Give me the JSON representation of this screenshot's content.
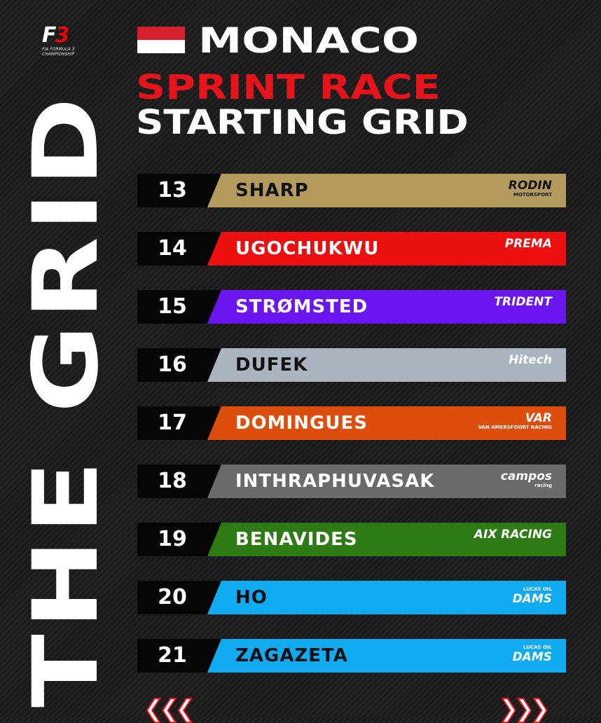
{
  "logo": {
    "mark_f": "F",
    "mark_3": "3",
    "subtitle": "FIA FORMULA 3 CHAMPIONSHIP"
  },
  "header": {
    "location": "MONACO",
    "race": "SPRINT RACE",
    "subtitle": "STARTING GRID",
    "flag_colors": [
      "#d6202e",
      "#ffffff"
    ]
  },
  "side_title": "THE GRID",
  "grid": [
    {
      "position": "13",
      "driver": "SHARP",
      "team": "RODIN",
      "team_sub": "MOTORSPORT",
      "color": "#b59a5e",
      "text_color": "#111111"
    },
    {
      "position": "14",
      "driver": "UGOCHUKWU",
      "team": "PREMA",
      "team_sub": "",
      "color": "#ec0f0f",
      "text_color": "#ffffff"
    },
    {
      "position": "15",
      "driver": "STRØMSTED",
      "team": "TRIDENT",
      "team_sub": "",
      "color": "#6b16ef",
      "text_color": "#ffffff"
    },
    {
      "position": "16",
      "driver": "DUFEK",
      "team": "Hitech",
      "team_sub": "",
      "color": "#a9b4bf",
      "text_color": "#111111"
    },
    {
      "position": "17",
      "driver": "DOMINGUES",
      "team": "VAR",
      "team_sub": "VAN AMERSFOORT RACING",
      "color": "#dd4e0c",
      "text_color": "#ffffff"
    },
    {
      "position": "18",
      "driver": "INTHRAPHUVASAK",
      "team": "campos",
      "team_sub": "racing",
      "color": "#6a6a6a",
      "text_color": "#ffffff"
    },
    {
      "position": "19",
      "driver": "BENAVIDES",
      "team": "AIX RACING",
      "team_sub": "",
      "color": "#2e7a15",
      "text_color": "#ffffff"
    },
    {
      "position": "20",
      "driver": "HO",
      "team": "DAMS",
      "team_sub": "LUCAS OIL",
      "color": "#0faaf0",
      "text_color": "#111111"
    },
    {
      "position": "21",
      "driver": "ZAGAZETA",
      "team": "DAMS",
      "team_sub": "LUCAS OIL",
      "color": "#0faaf0",
      "text_color": "#111111"
    }
  ],
  "nav": {
    "prev": "❮❮❮",
    "next": "❯❯❯"
  }
}
